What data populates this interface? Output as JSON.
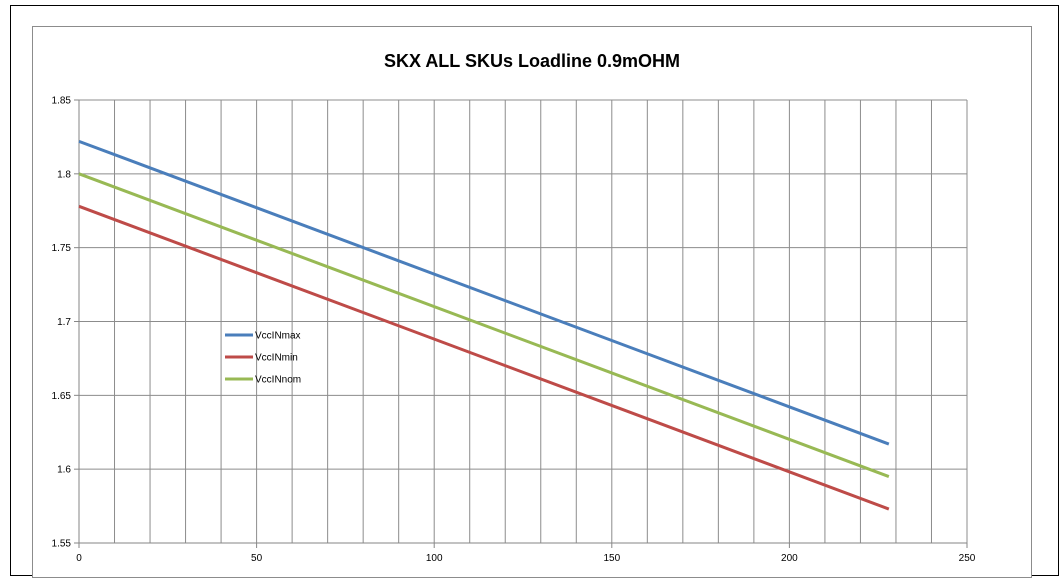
{
  "chart_data": {
    "type": "line",
    "title": "SKX ALL SKUs Loadline 0.9mOHM",
    "xlabel": "",
    "ylabel": "",
    "xlim": [
      0,
      250
    ],
    "ylim": [
      1.55,
      1.85
    ],
    "x_ticks": [
      "0",
      "50",
      "100",
      "150",
      "200",
      "250"
    ],
    "y_ticks": [
      "1.55",
      "1.6",
      "1.65",
      "1.7",
      "1.75",
      "1.8",
      "1.85"
    ],
    "grid": "vertical and horizontal",
    "legend_position": "left-center",
    "series": [
      {
        "name": "VccINmax",
        "color": "#4a7ebb",
        "x": [
          0,
          228
        ],
        "y": [
          1.822,
          1.617
        ]
      },
      {
        "name": "VccINmin",
        "color": "#be4b48",
        "x": [
          0,
          228
        ],
        "y": [
          1.778,
          1.573
        ]
      },
      {
        "name": "VccINnom",
        "color": "#98b954",
        "x": [
          0,
          228
        ],
        "y": [
          1.8,
          1.595
        ]
      }
    ]
  }
}
